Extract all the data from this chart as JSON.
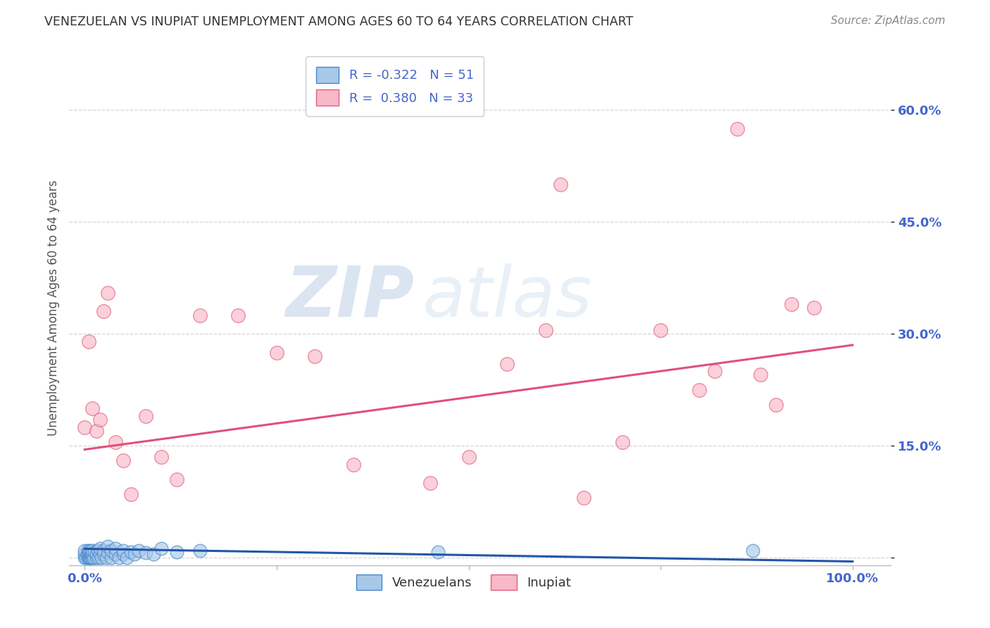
{
  "title": "VENEZUELAN VS INUPIAT UNEMPLOYMENT AMONG AGES 60 TO 64 YEARS CORRELATION CHART",
  "source": "Source: ZipAtlas.com",
  "ylabel": "Unemployment Among Ages 60 to 64 years",
  "ytick_values": [
    0.0,
    0.15,
    0.3,
    0.45,
    0.6
  ],
  "ytick_labels": [
    "",
    "15.0%",
    "30.0%",
    "45.0%",
    "60.0%"
  ],
  "xlim": [
    -0.02,
    1.05
  ],
  "ylim": [
    -0.01,
    0.68
  ],
  "legend_r_venezuelan": "-0.322",
  "legend_n_venezuelan": "51",
  "legend_r_inupiat": "0.380",
  "legend_n_inupiat": "33",
  "venezuelan_fill": "#a8c8e8",
  "inupiat_fill": "#f8b8c8",
  "venezuelan_edge": "#4488cc",
  "inupiat_edge": "#e06080",
  "venezuelan_line_color": "#2255aa",
  "inupiat_line_color": "#e0507a",
  "watermark_zip": "ZIP",
  "watermark_atlas": "atlas",
  "venezuelan_x": [
    0.0,
    0.0,
    0.0,
    0.002,
    0.003,
    0.004,
    0.004,
    0.005,
    0.005,
    0.006,
    0.006,
    0.007,
    0.007,
    0.008,
    0.009,
    0.009,
    0.01,
    0.01,
    0.01,
    0.012,
    0.013,
    0.015,
    0.015,
    0.017,
    0.018,
    0.02,
    0.02,
    0.022,
    0.025,
    0.025,
    0.028,
    0.03,
    0.03,
    0.035,
    0.035,
    0.04,
    0.04,
    0.045,
    0.05,
    0.05,
    0.055,
    0.06,
    0.065,
    0.07,
    0.08,
    0.09,
    0.1,
    0.12,
    0.15,
    0.46,
    0.87
  ],
  "venezuelan_y": [
    0.0,
    0.005,
    0.01,
    0.0,
    0.005,
    0.0,
    0.01,
    0.0,
    0.008,
    0.0,
    0.005,
    0.0,
    0.01,
    0.003,
    0.0,
    0.006,
    0.0,
    0.005,
    0.01,
    0.0,
    0.008,
    0.0,
    0.005,
    0.01,
    0.0,
    0.005,
    0.012,
    0.0,
    0.005,
    0.01,
    0.0,
    0.008,
    0.015,
    0.0,
    0.01,
    0.005,
    0.012,
    0.0,
    0.005,
    0.01,
    0.0,
    0.008,
    0.005,
    0.01,
    0.007,
    0.005,
    0.012,
    0.008,
    0.01,
    0.008,
    0.01
  ],
  "inupiat_x": [
    0.0,
    0.005,
    0.01,
    0.015,
    0.02,
    0.025,
    0.03,
    0.04,
    0.05,
    0.06,
    0.08,
    0.1,
    0.12,
    0.15,
    0.2,
    0.25,
    0.3,
    0.35,
    0.45,
    0.5,
    0.55,
    0.6,
    0.62,
    0.65,
    0.7,
    0.75,
    0.8,
    0.82,
    0.85,
    0.88,
    0.9,
    0.92,
    0.95
  ],
  "inupiat_y": [
    0.175,
    0.29,
    0.2,
    0.17,
    0.185,
    0.33,
    0.355,
    0.155,
    0.13,
    0.085,
    0.19,
    0.135,
    0.105,
    0.325,
    0.325,
    0.275,
    0.27,
    0.125,
    0.1,
    0.135,
    0.26,
    0.305,
    0.5,
    0.08,
    0.155,
    0.305,
    0.225,
    0.25,
    0.575,
    0.245,
    0.205,
    0.34,
    0.335
  ],
  "venezuelan_trend_y0": 0.012,
  "venezuelan_trend_y1": -0.005,
  "inupiat_trend_y0": 0.145,
  "inupiat_trend_y1": 0.285,
  "background_color": "#ffffff",
  "grid_color": "#cccccc",
  "title_color": "#333333",
  "source_color": "#888888",
  "tick_color": "#4466cc",
  "ylabel_color": "#555555"
}
